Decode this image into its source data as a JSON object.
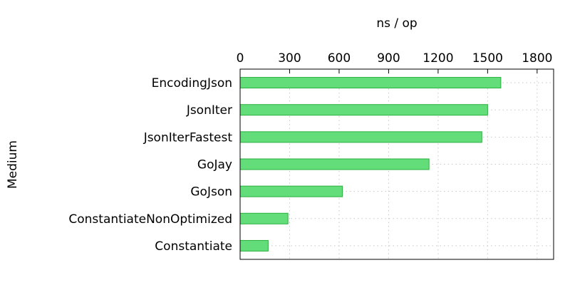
{
  "chart_data": {
    "type": "bar",
    "orientation": "horizontal",
    "xlabel": "ns / op",
    "ylabel": "Medium",
    "xlim": [
      0,
      1900
    ],
    "xticks": [
      "0",
      "300",
      "600",
      "900",
      "1200",
      "1500",
      "1800"
    ],
    "x_axis_position": "top",
    "grid": true,
    "categories": [
      "EncodingJson",
      "JsonIter",
      "JsonIterFastest",
      "GoJay",
      "GoJson",
      "ConstantiateNonOptimized",
      "Constantiate"
    ],
    "values": [
      1580,
      1500,
      1465,
      1145,
      620,
      290,
      170
    ],
    "bar_color": "#62dd7a",
    "bar_edge_color": "#2bb03f"
  }
}
